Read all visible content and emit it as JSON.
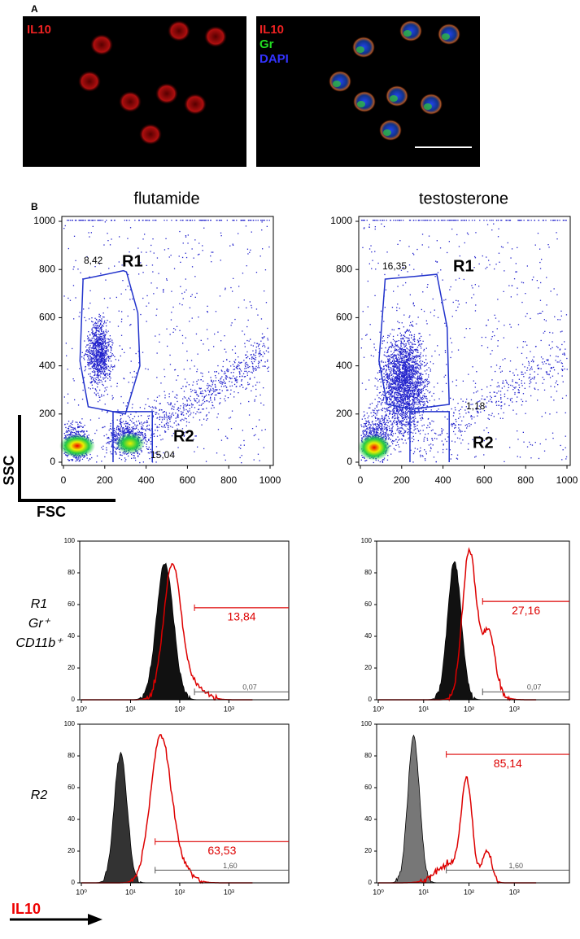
{
  "panel_a": {
    "label": "A",
    "images": [
      {
        "labels": [
          "IL10"
        ]
      },
      {
        "labels": [
          "IL10",
          "Gr",
          "DAPI"
        ]
      }
    ]
  },
  "panel_b": {
    "label": "B",
    "scatter_ticks": [
      0,
      200,
      400,
      600,
      800,
      1000
    ],
    "scatter_plots": [
      {
        "title": "flutamide",
        "gates": [
          {
            "name": "R1",
            "percent": "8,42"
          },
          {
            "name": "R2",
            "percent": "15,04"
          }
        ]
      },
      {
        "title": "testosterone",
        "gates": [
          {
            "name": "R1",
            "percent": "16,35"
          },
          {
            "name": "R2",
            "percent": "1,18"
          }
        ]
      }
    ],
    "axis_indicator": {
      "y": "SSC",
      "x": "FSC"
    },
    "histograms": {
      "y_ticks": [
        0,
        20,
        40,
        60,
        80,
        100
      ],
      "x_ticks": [
        "10⁰",
        "10¹",
        "10²",
        "10³"
      ],
      "rows": [
        {
          "labels": [
            "R1",
            "Gr⁺",
            "CD11b⁺"
          ],
          "panels": [
            {
              "positive": "13,84",
              "control": "0,07"
            },
            {
              "positive": "27,16",
              "control": "0,07"
            }
          ]
        },
        {
          "labels": [
            "R2"
          ],
          "panels": [
            {
              "positive": "63,53",
              "control": "1,60"
            },
            {
              "positive": "85,14",
              "control": "1,60"
            }
          ]
        }
      ]
    },
    "bottom_label": "IL10"
  }
}
